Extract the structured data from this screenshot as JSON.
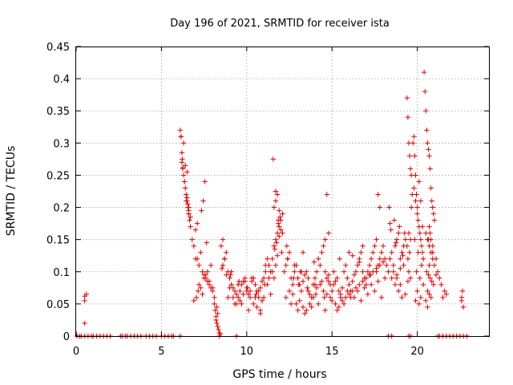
{
  "chart_data": {
    "type": "scatter",
    "title": "Day 196 of 2021, SRMTID for receiver ista",
    "xlabel": "GPS time / hours",
    "ylabel": "SRMTID / TECUs",
    "xlim": [
      0,
      24.2
    ],
    "ylim": [
      0,
      0.45
    ],
    "xticks": [
      0,
      5,
      10,
      15,
      20
    ],
    "yticks": [
      0,
      0.05,
      0.1,
      0.15,
      0.2,
      0.25,
      0.3,
      0.35,
      0.4,
      0.45
    ],
    "ytick_labels": [
      "0",
      "0.05",
      "0.1",
      "0.15",
      "0.2",
      "0.25",
      "0.3",
      "0.35",
      "0.4",
      "0.45"
    ],
    "grid": true,
    "marker": "+",
    "color": "#e00000",
    "series": [
      {
        "x": [
          0.05,
          0.2,
          0.3,
          0.5,
          0.7,
          0.9,
          1.0,
          1.2,
          1.4,
          1.6,
          1.8,
          2.0,
          2.6,
          2.7,
          2.9,
          3.0,
          3.2,
          3.4,
          3.6,
          3.8,
          4.1,
          4.3,
          4.5,
          4.7,
          5.0,
          5.2,
          5.4,
          5.6,
          5.7,
          6.1,
          8.4,
          9.4,
          18.3,
          18.5,
          19.5,
          19.6,
          21.2,
          21.3,
          21.5,
          21.7,
          21.9,
          22.1,
          22.3,
          22.5,
          22.7,
          22.9,
          0.5,
          0.5,
          0.5,
          0.6,
          6.1,
          6.15,
          6.2,
          6.25,
          6.3,
          6.35,
          6.4,
          6.45,
          6.5,
          6.55,
          6.6,
          6.65,
          6.7,
          6.3,
          6.4,
          6.5,
          6.6,
          6.45,
          6.55,
          6.2,
          6.25,
          6.35,
          6.6,
          6.7,
          6.15,
          6.22,
          6.5,
          6.6,
          6.8,
          6.9,
          7.0,
          7.1,
          7.2,
          7.3,
          7.4,
          7.5,
          7.6,
          7.7,
          7.8,
          7.9,
          8.0,
          6.9,
          7.05,
          7.15,
          7.3,
          7.5,
          7.7,
          7.9,
          7.0,
          7.2,
          7.4,
          7.6,
          7.8,
          8.0,
          7.55,
          7.45,
          7.1,
          7.35,
          7.65,
          8.1,
          8.15,
          8.2,
          8.25,
          8.3,
          8.35,
          8.4,
          8.2,
          8.3,
          8.25,
          8.1,
          8.45,
          8.5,
          8.6,
          8.7,
          8.8,
          8.9,
          9.0,
          9.1,
          9.2,
          9.3,
          9.4,
          9.5,
          9.6,
          9.7,
          9.8,
          9.9,
          10.0,
          10.1,
          10.2,
          10.3,
          10.4,
          10.5,
          10.6,
          10.7,
          10.8,
          10.9,
          11.0,
          11.1,
          11.2,
          11.3,
          11.4,
          8.6,
          8.8,
          9.0,
          9.2,
          9.4,
          9.6,
          9.8,
          10.0,
          10.2,
          10.4,
          10.6,
          10.8,
          11.0,
          11.2,
          8.7,
          9.1,
          9.5,
          9.9,
          10.3,
          10.7,
          11.1,
          11.3,
          10.5,
          10.9,
          9.3,
          9.7,
          8.9,
          10.1,
          10.8,
          11.4,
          8.55,
          9.05,
          9.55,
          10.05,
          10.55,
          11.05,
          11.5,
          11.6,
          11.7,
          11.8,
          11.9,
          12.0,
          12.1,
          11.6,
          11.7,
          11.8,
          11.9,
          12.0,
          11.55,
          11.65,
          11.75,
          11.85,
          11.95,
          12.05,
          11.7,
          11.5,
          11.8,
          11.6,
          11.9,
          12.1,
          11.7,
          11.85,
          12.2,
          12.3,
          12.4,
          12.5,
          12.6,
          12.7,
          12.8,
          12.9,
          13.0,
          13.1,
          13.2,
          13.3,
          13.4,
          13.5,
          13.6,
          13.7,
          13.8,
          13.9,
          14.0,
          14.1,
          14.2,
          14.3,
          14.4,
          14.5,
          14.6,
          14.7,
          14.8,
          14.9,
          15.0,
          12.3,
          12.5,
          12.7,
          12.9,
          13.1,
          13.3,
          13.5,
          13.7,
          13.9,
          14.1,
          14.3,
          14.5,
          14.7,
          14.9,
          12.4,
          12.8,
          13.2,
          13.6,
          14.0,
          14.4,
          14.8,
          12.6,
          13.0,
          13.4,
          13.8,
          14.2,
          14.6,
          15.0,
          13.05,
          13.55,
          14.05,
          14.55,
          14.6,
          14.8,
          14.7,
          13.3,
          12.35,
          12.75,
          13.15,
          13.95,
          15.1,
          15.2,
          15.3,
          15.4,
          15.5,
          15.6,
          15.7,
          15.8,
          15.9,
          16.0,
          16.1,
          16.2,
          16.3,
          16.4,
          16.5,
          16.6,
          16.7,
          16.8,
          16.9,
          17.0,
          17.1,
          17.2,
          17.3,
          17.4,
          17.5,
          17.6,
          17.7,
          17.8,
          17.9,
          18.0,
          18.1,
          18.2,
          15.2,
          15.4,
          15.6,
          15.8,
          16.0,
          16.2,
          16.4,
          16.6,
          16.8,
          17.0,
          17.2,
          17.4,
          17.6,
          17.8,
          18.0,
          15.3,
          15.7,
          16.1,
          16.5,
          16.9,
          17.3,
          17.7,
          18.1,
          15.5,
          15.9,
          16.3,
          16.7,
          17.1,
          17.5,
          17.9,
          16.0,
          16.2,
          16.8,
          17.6,
          17.8,
          17.7,
          15.1,
          15.45,
          16.6,
          17.25,
          18.3,
          18.4,
          18.5,
          18.6,
          18.7,
          18.8,
          18.9,
          19.0,
          19.1,
          19.2,
          19.3,
          18.4,
          18.6,
          18.8,
          19.0,
          19.2,
          18.5,
          18.7,
          18.9,
          19.1,
          19.3,
          18.35,
          18.65,
          18.95,
          19.25,
          18.8,
          19.0,
          18.45,
          18.75,
          19.15,
          19.4,
          19.45,
          19.5,
          19.55,
          19.6,
          19.65,
          19.7,
          19.5,
          19.6,
          19.4,
          19.55,
          19.45,
          19.65,
          19.5,
          19.6,
          19.45,
          19.75,
          19.8,
          19.85,
          19.9,
          19.95,
          20.0,
          20.05,
          20.1,
          20.15,
          20.2,
          20.25,
          20.3,
          20.35,
          19.8,
          19.9,
          20.0,
          20.1,
          20.2,
          20.3,
          19.85,
          20.05,
          20.25,
          19.95,
          20.15,
          20.35,
          20.0,
          20.2,
          20.1,
          19.9,
          20.4,
          20.45,
          20.5,
          20.55,
          20.6,
          20.65,
          20.7,
          20.75,
          20.8,
          20.85,
          20.9,
          20.95,
          21.0,
          20.5,
          20.6,
          20.7,
          20.8,
          20.9,
          21.0,
          20.55,
          20.65,
          20.75,
          20.85,
          20.95,
          20.6,
          20.7,
          20.8,
          20.5,
          20.6,
          20.65,
          20.7,
          20.75,
          20.8,
          20.9,
          21.1,
          21.2,
          21.3,
          21.4,
          20.7,
          20.9,
          21.1,
          21.5,
          21.6,
          21.7,
          22.6,
          22.65,
          22.7,
          22.6
        ],
        "y": [
          0,
          0,
          0,
          0,
          0,
          0,
          0,
          0,
          0,
          0,
          0,
          0,
          0,
          0,
          0,
          0,
          0,
          0,
          0,
          0,
          0,
          0,
          0,
          0,
          0,
          0,
          0,
          0,
          0,
          0,
          0,
          0,
          0,
          0,
          0,
          0,
          0,
          0,
          0,
          0,
          0,
          0,
          0,
          0,
          0,
          0,
          0.055,
          0.062,
          0.02,
          0.065,
          0.32,
          0.31,
          0.27,
          0.26,
          0.25,
          0.24,
          0.23,
          0.22,
          0.21,
          0.2,
          0.19,
          0.18,
          0.17,
          0.3,
          0.265,
          0.255,
          0.195,
          0.21,
          0.205,
          0.285,
          0.262,
          0.24,
          0.2,
          0.185,
          0.31,
          0.275,
          0.215,
          0.19,
          0.15,
          0.14,
          0.165,
          0.12,
          0.11,
          0.13,
          0.1,
          0.095,
          0.09,
          0.085,
          0.08,
          0.075,
          0.07,
          0.055,
          0.06,
          0.07,
          0.075,
          0.09,
          0.1,
          0.11,
          0.12,
          0.08,
          0.065,
          0.095,
          0.085,
          0.075,
          0.24,
          0.21,
          0.175,
          0.195,
          0.145,
          0.05,
          0.04,
          0.03,
          0.02,
          0.015,
          0.01,
          0.005,
          0.025,
          0.035,
          0.045,
          0.06,
          0.003,
          0.14,
          0.15,
          0.12,
          0.13,
          0.1,
          0.09,
          0.08,
          0.075,
          0.07,
          0.065,
          0.06,
          0.07,
          0.08,
          0.085,
          0.09,
          0.075,
          0.065,
          0.07,
          0.085,
          0.09,
          0.08,
          0.07,
          0.06,
          0.075,
          0.085,
          0.09,
          0.1,
          0.12,
          0.11,
          0.1,
          0.11,
          0.095,
          0.075,
          0.06,
          0.05,
          0.055,
          0.065,
          0.07,
          0.06,
          0.05,
          0.045,
          0.04,
          0.06,
          0.08,
          0.12,
          0.1,
          0.08,
          0.085,
          0.09,
          0.07,
          0.11,
          0.09,
          0.06,
          0.055,
          0.05,
          0.05,
          0.06,
          0.04,
          0.035,
          0.065,
          0.105,
          0.095,
          0.085,
          0.075,
          0.065,
          0.08,
          0.12,
          0.14,
          0.15,
          0.16,
          0.17,
          0.18,
          0.19,
          0.2,
          0.21,
          0.22,
          0.155,
          0.165,
          0.275,
          0.135,
          0.145,
          0.175,
          0.185,
          0.13,
          0.11,
          0.1,
          0.125,
          0.09,
          0.195,
          0.16,
          0.225,
          0.18,
          0.1,
          0.11,
          0.12,
          0.13,
          0.09,
          0.08,
          0.1,
          0.11,
          0.09,
          0.08,
          0.07,
          0.085,
          0.095,
          0.1,
          0.07,
          0.065,
          0.06,
          0.08,
          0.09,
          0.1,
          0.12,
          0.11,
          0.13,
          0.14,
          0.1,
          0.09,
          0.085,
          0.08,
          0.07,
          0.06,
          0.07,
          0.065,
          0.05,
          0.055,
          0.045,
          0.04,
          0.05,
          0.06,
          0.075,
          0.08,
          0.07,
          0.065,
          0.06,
          0.12,
          0.11,
          0.1,
          0.09,
          0.08,
          0.085,
          0.095,
          0.05,
          0.04,
          0.035,
          0.045,
          0.05,
          0.04,
          0.055,
          0.08,
          0.075,
          0.065,
          0.06,
          0.15,
          0.16,
          0.22,
          0.13,
          0.14,
          0.09,
          0.1,
          0.115,
          0.08,
          0.085,
          0.09,
          0.07,
          0.06,
          0.075,
          0.1,
          0.11,
          0.09,
          0.08,
          0.07,
          0.085,
          0.095,
          0.1,
          0.11,
          0.12,
          0.13,
          0.1,
          0.09,
          0.08,
          0.1,
          0.11,
          0.12,
          0.13,
          0.14,
          0.1,
          0.11,
          0.12,
          0.13,
          0.14,
          0.12,
          0.11,
          0.05,
          0.045,
          0.055,
          0.06,
          0.065,
          0.07,
          0.075,
          0.08,
          0.085,
          0.09,
          0.095,
          0.1,
          0.105,
          0.11,
          0.115,
          0.04,
          0.05,
          0.06,
          0.07,
          0.075,
          0.08,
          0.085,
          0.09,
          0.065,
          0.07,
          0.06,
          0.055,
          0.065,
          0.07,
          0.06,
          0.13,
          0.125,
          0.14,
          0.15,
          0.2,
          0.22,
          0.1,
          0.12,
          0.115,
          0.095,
          0.1,
          0.12,
          0.13,
          0.11,
          0.14,
          0.15,
          0.16,
          0.12,
          0.13,
          0.14,
          0.15,
          0.175,
          0.1,
          0.09,
          0.08,
          0.11,
          0.09,
          0.08,
          0.07,
          0.06,
          0.065,
          0.2,
          0.18,
          0.17,
          0.16,
          0.095,
          0.105,
          0.165,
          0.145,
          0.125,
          0.37,
          0.34,
          0.3,
          0.28,
          0.26,
          0.25,
          0.22,
          0.16,
          0.15,
          0.14,
          0.13,
          0.12,
          0.2,
          0.1,
          0.09,
          0.085,
          0.3,
          0.31,
          0.28,
          0.25,
          0.22,
          0.2,
          0.18,
          0.17,
          0.16,
          0.15,
          0.14,
          0.13,
          0.12,
          0.23,
          0.21,
          0.19,
          0.24,
          0.21,
          0.17,
          0.15,
          0.13,
          0.11,
          0.1,
          0.09,
          0.08,
          0.07,
          0.06,
          0.05,
          0.055,
          0.41,
          0.38,
          0.35,
          0.32,
          0.3,
          0.29,
          0.28,
          0.26,
          0.23,
          0.21,
          0.2,
          0.19,
          0.18,
          0.16,
          0.15,
          0.14,
          0.13,
          0.12,
          0.11,
          0.1,
          0.095,
          0.09,
          0.085,
          0.08,
          0.07,
          0.065,
          0.06,
          0.055,
          0.045,
          0.15,
          0.17,
          0.16,
          0.15,
          0.14,
          0.12,
          0.1,
          0.09,
          0.08,
          0.11,
          0.13,
          0.095,
          0.06,
          0.07,
          0.065,
          0.06,
          0.07,
          0.045,
          0.055
        ]
      }
    ]
  }
}
